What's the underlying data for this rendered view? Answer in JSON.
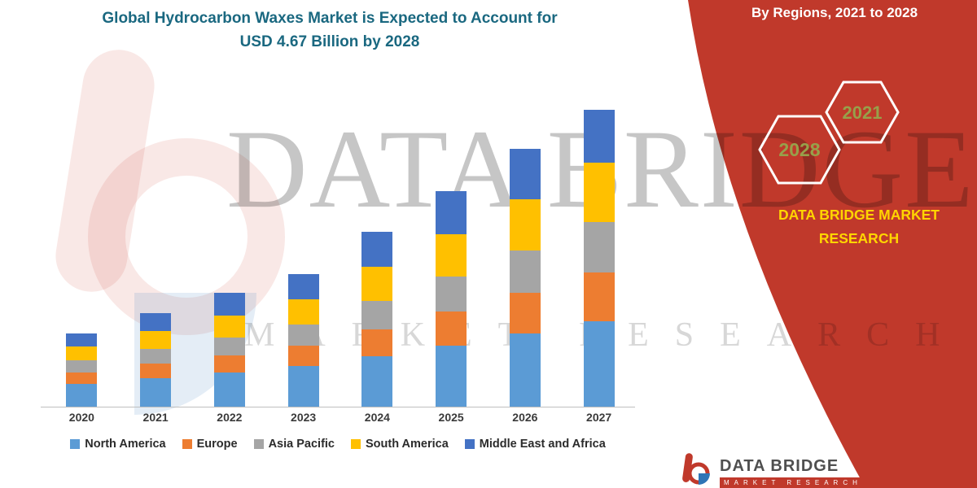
{
  "title": {
    "line1": "Global Hydrocarbon Waxes Market is Expected to Account for",
    "line2": "USD 4.67 Billion by 2028"
  },
  "red_panel": {
    "heading": "By Regions, 2021 to 2028",
    "hexagons": [
      "2028",
      "2021"
    ],
    "brand": "DATA BRIDGE MARKET RESEARCH",
    "background_color": "#c0392b",
    "brand_color": "#ffd500",
    "hexagon_text_color": "#97a04a"
  },
  "watermark": {
    "line1": "DATA BRIDGE",
    "line2": "MARKET RESEARCH"
  },
  "footer_logo": {
    "name": "DATA BRIDGE",
    "tagline": "MARKET RESEARCH"
  },
  "chart_data": {
    "type": "bar",
    "stacked": true,
    "title": "Global Hydrocarbon Waxes Market is Expected to Account for USD 4.67 Billion by 2028",
    "xlabel": "",
    "ylabel": "",
    "y_axis_visible": false,
    "grid": false,
    "legend_position": "bottom",
    "units": "USD Billion (estimated; no value axis shown)",
    "values_estimated": true,
    "ylim": [
      0,
      4
    ],
    "categories": [
      "2020",
      "2021",
      "2022",
      "2023",
      "2024",
      "2025",
      "2026",
      "2027"
    ],
    "series": [
      {
        "name": "North America",
        "color": "#5B9BD5",
        "values": [
          0.28,
          0.35,
          0.42,
          0.5,
          0.62,
          0.75,
          0.9,
          1.05
        ]
      },
      {
        "name": "Europe",
        "color": "#ED7D31",
        "values": [
          0.14,
          0.18,
          0.21,
          0.25,
          0.33,
          0.42,
          0.5,
          0.6
        ]
      },
      {
        "name": "Asia Pacific",
        "color": "#A5A5A5",
        "values": [
          0.15,
          0.18,
          0.22,
          0.26,
          0.35,
          0.43,
          0.52,
          0.62
        ]
      },
      {
        "name": "South America",
        "color": "#FFC000",
        "values": [
          0.17,
          0.22,
          0.27,
          0.31,
          0.42,
          0.52,
          0.63,
          0.73
        ]
      },
      {
        "name": "Middle East and Africa",
        "color": "#4472C4",
        "values": [
          0.16,
          0.22,
          0.28,
          0.31,
          0.43,
          0.53,
          0.62,
          0.65
        ]
      }
    ],
    "totals": [
      0.9,
      1.15,
      1.4,
      1.63,
      2.15,
      2.65,
      3.17,
      3.65
    ]
  }
}
